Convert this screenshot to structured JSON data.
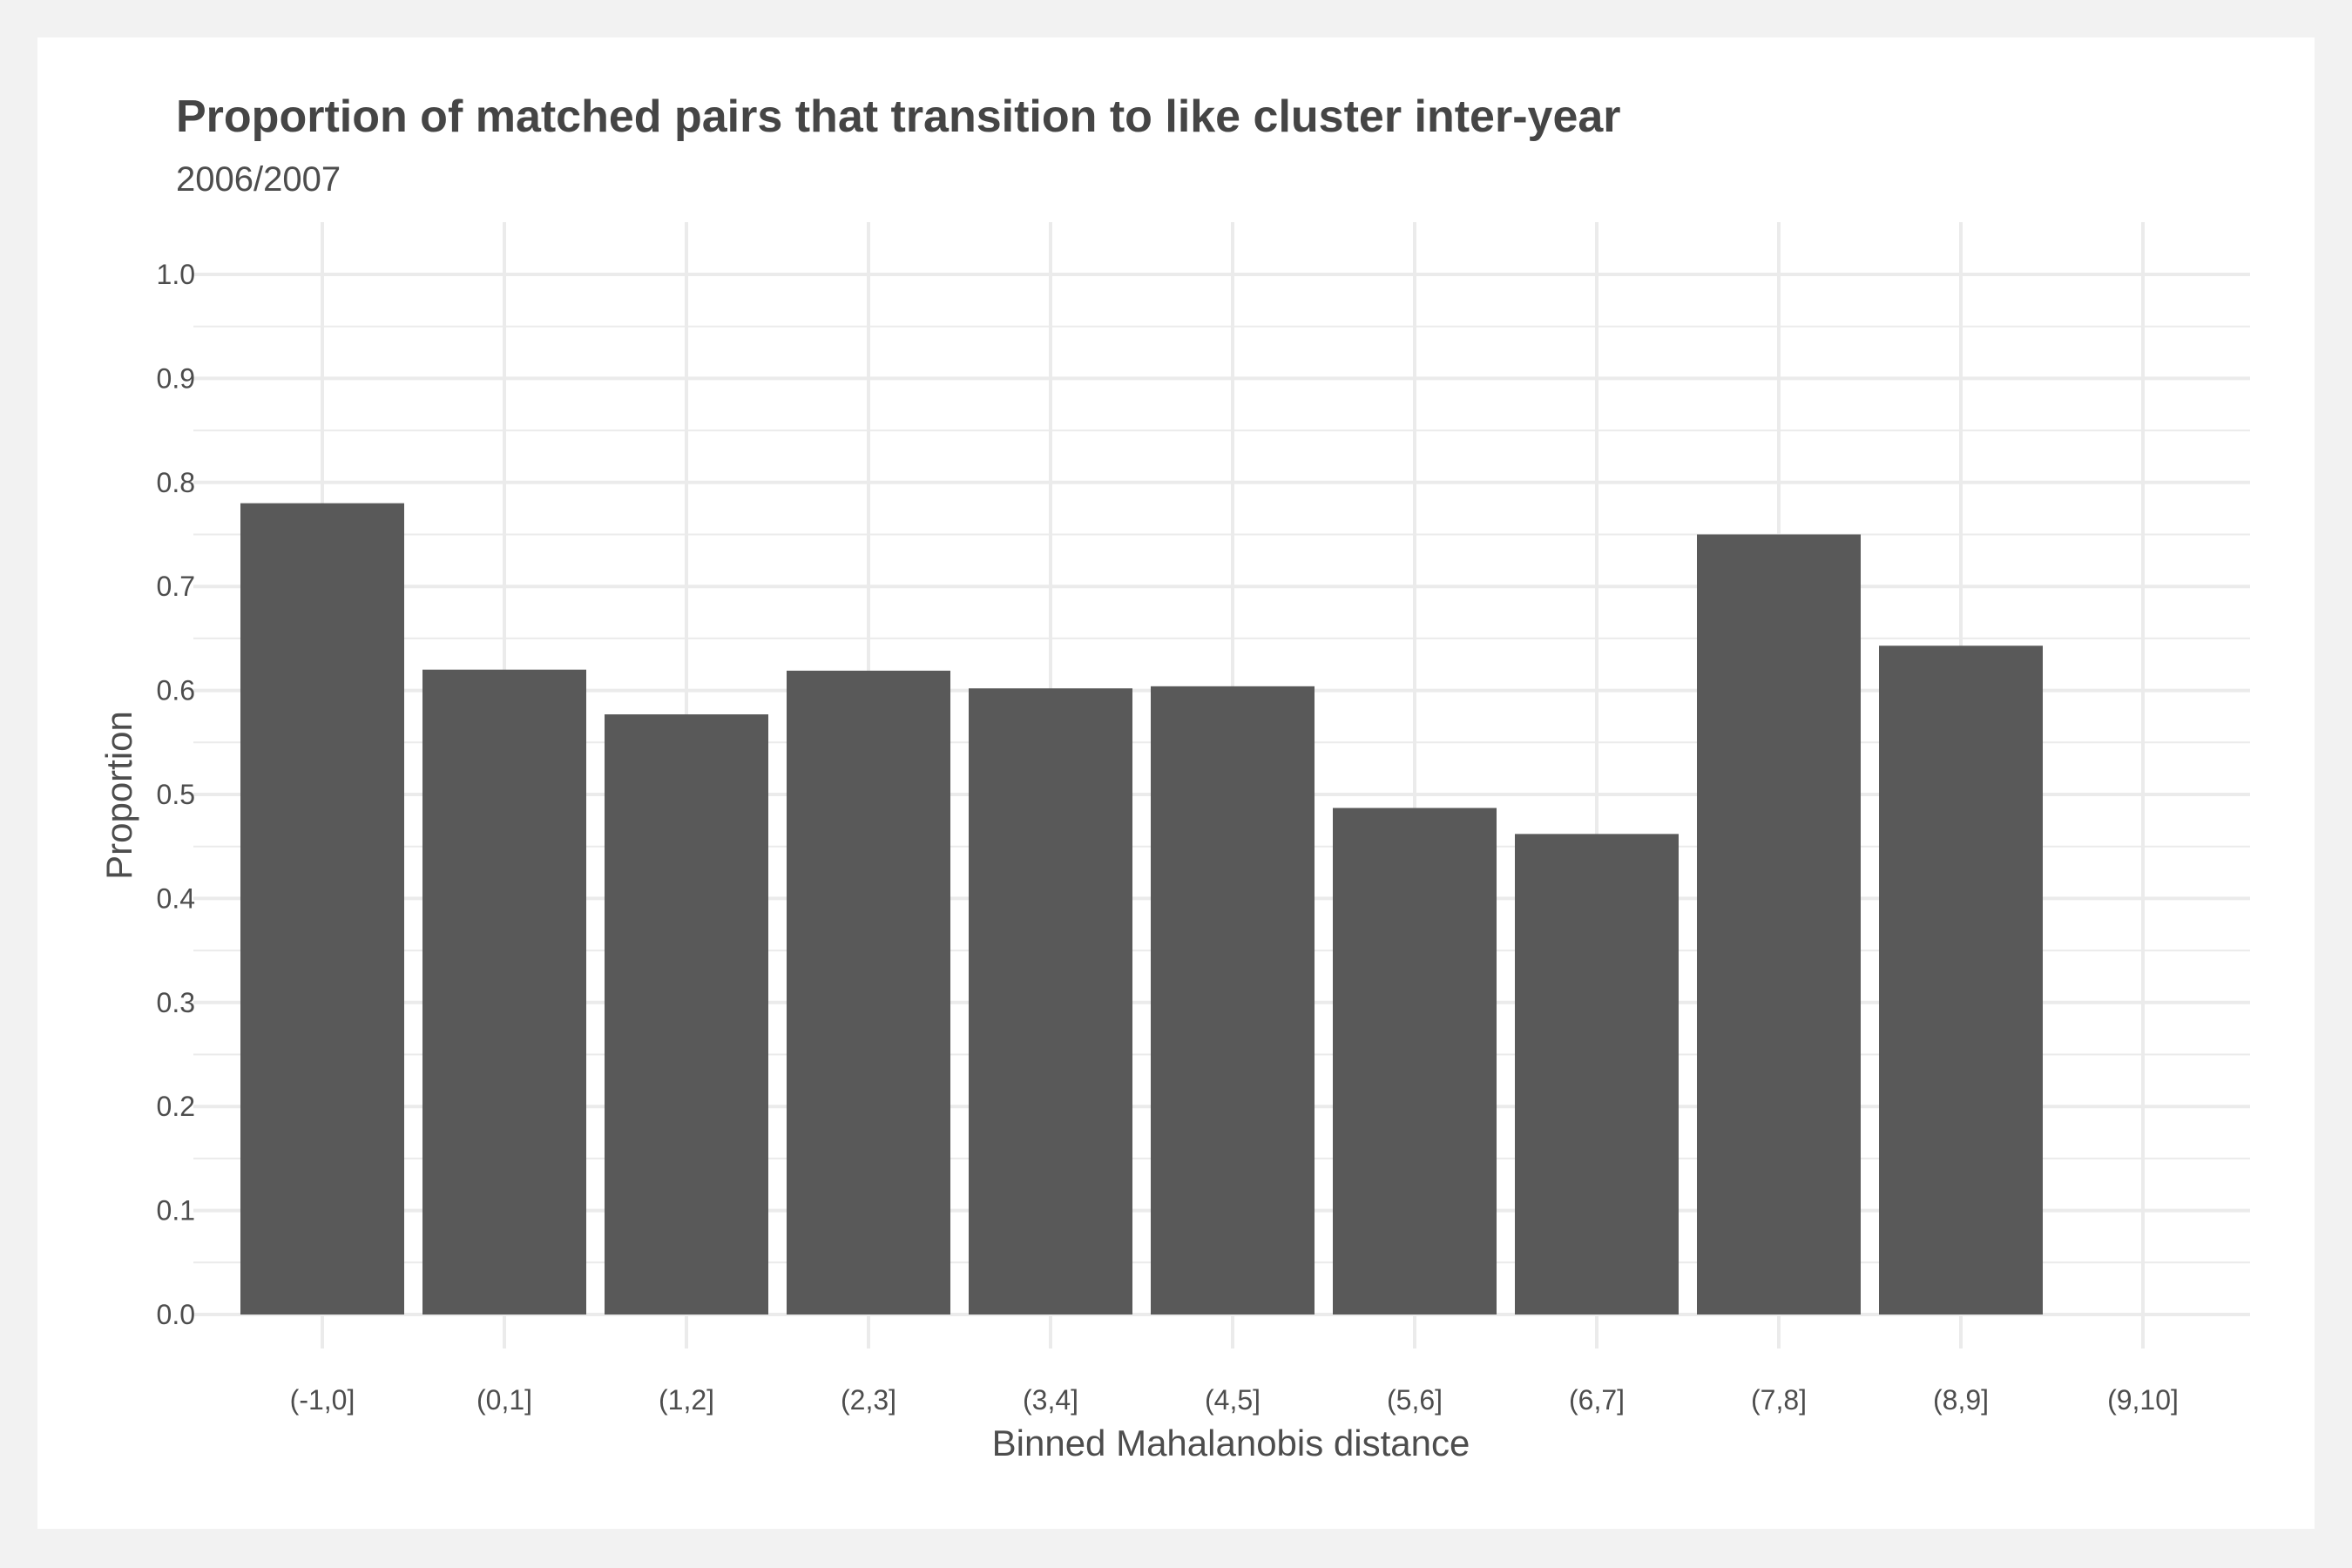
{
  "chart_data": {
    "type": "bar",
    "title": "Proportion of matched pairs that transition to like cluster inter-year",
    "subtitle": "2006/2007",
    "xlabel": "Binned Mahalanobis distance",
    "ylabel": "Proportion",
    "categories": [
      "(-1,0]",
      "(0,1]",
      "(1,2]",
      "(2,3]",
      "(3,4]",
      "(4,5]",
      "(5,6]",
      "(6,7]",
      "(7,8]",
      "(8,9]",
      "(9,10]"
    ],
    "values": [
      0.78,
      0.62,
      0.577,
      0.619,
      0.602,
      0.604,
      0.487,
      0.462,
      0.75,
      0.643,
      null
    ],
    "ylim": [
      0,
      1.0
    ],
    "yticks": [
      "0.0",
      "0.1",
      "0.2",
      "0.3",
      "0.4",
      "0.5",
      "0.6",
      "0.7",
      "0.8",
      "0.9",
      "1.0"
    ],
    "grid": true,
    "legend": "none",
    "colors": {
      "bar": "#595959",
      "grid": "#ebebeb",
      "panel": "#ffffff",
      "background": "#f2f2f2",
      "text": "#4d4d4d"
    }
  }
}
